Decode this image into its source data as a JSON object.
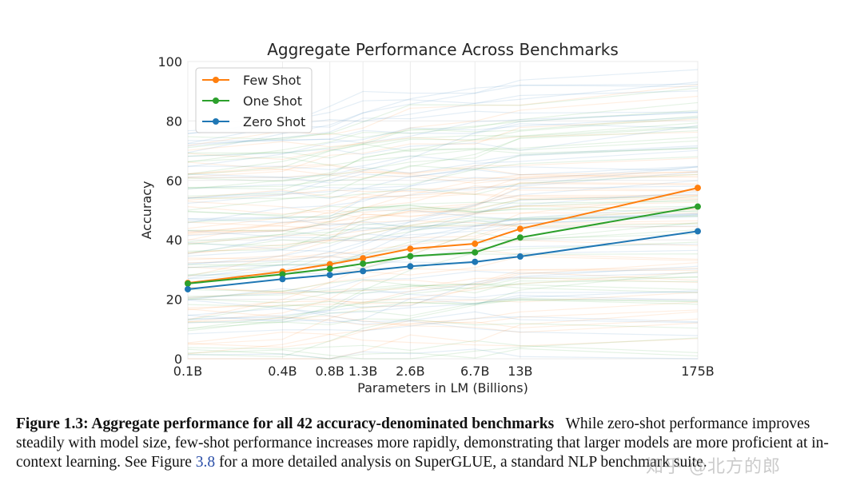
{
  "chart_data": {
    "type": "line",
    "title": "Aggregate Performance Across Benchmarks",
    "xlabel": "Parameters in LM (Billions)",
    "ylabel": "Accuracy",
    "x_ticks": [
      0.1,
      0.4,
      0.8,
      1.3,
      2.6,
      6.7,
      13,
      175
    ],
    "x_tick_labels": [
      "0.1B",
      "0.4B",
      "0.8B",
      "1.3B",
      "2.6B",
      "6.7B",
      "13B",
      "175B"
    ],
    "ylim": [
      0,
      100
    ],
    "y_ticks": [
      0,
      20,
      40,
      60,
      80,
      100
    ],
    "grid": true,
    "legend_position": "top-left",
    "series": [
      {
        "name": "Few Shot",
        "color": "#ff7f0e",
        "values": [
          25.5,
          29.3,
          31.8,
          33.8,
          37.0,
          38.7,
          43.7,
          57.5
        ]
      },
      {
        "name": "One Shot",
        "color": "#2ca02c",
        "values": [
          25.3,
          28.4,
          30.3,
          32.0,
          34.5,
          35.8,
          40.8,
          51.2
        ]
      },
      {
        "name": "Zero Shot",
        "color": "#1f77b4",
        "values": [
          23.4,
          26.8,
          28.2,
          29.5,
          31.1,
          32.6,
          34.4,
          42.9
        ]
      }
    ]
  },
  "caption": {
    "label": "Figure 1.3: Aggregate performance for all 42 accuracy-denominated benchmarks",
    "text_before_ref": "While zero-shot performance improves steadily with model size, few-shot performance increases more rapidly, demonstrating that larger models are more proficient at in-context learning. See Figure ",
    "ref": "3.8",
    "text_after_ref": " for a more detailed analysis on SuperGLUE, a standard NLP benchmark suite."
  },
  "watermark": "知乎 @北方的郎"
}
